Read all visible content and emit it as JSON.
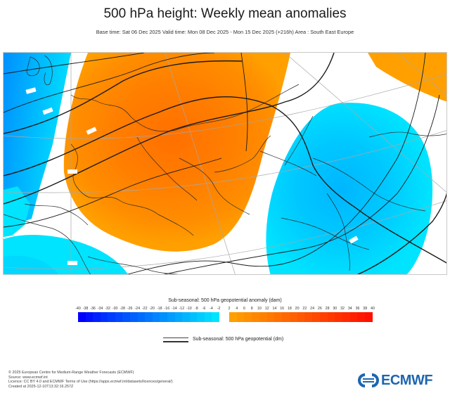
{
  "header": {
    "title": "500 hPa height: Weekly mean anomalies",
    "subtitle": "Base time: Sat 06 Dec 2025 Valid time: Mon 08 Dec 2025 - Mon 15 Dec 2025 (+216h) Area : South East Europe"
  },
  "map": {
    "area": "South East Europe",
    "colors": {
      "positive_light": "#ffa000",
      "positive_mid": "#ff8a00",
      "positive_strong": "#ff7800",
      "negative_light": "#00e5ff",
      "negative_mid": "#00cfff",
      "negative_strong": "#00b4ff",
      "coast": "#2b2b2b",
      "graticule": "#a8a8a8",
      "contour": "#1a1a1a"
    }
  },
  "legend": {
    "title": "Sub-seasonal: 500 hPa geopotential anomaly (dam)",
    "negative_ticks": [
      "-40",
      "-38",
      "-36",
      "-34",
      "-32",
      "-30",
      "-28",
      "-26",
      "-24",
      "-22",
      "-20",
      "-18",
      "-16",
      "-14",
      "-12",
      "-10",
      "-8",
      "-6",
      "-4",
      "-2"
    ],
    "positive_ticks": [
      "2",
      "4",
      "6",
      "8",
      "10",
      "12",
      "14",
      "16",
      "18",
      "20",
      "22",
      "24",
      "26",
      "28",
      "30",
      "32",
      "34",
      "36",
      "38",
      "40"
    ],
    "negative_colors": [
      "#0000ff",
      "#0010ff",
      "#0020ff",
      "#0030ff",
      "#003cff",
      "#0048ff",
      "#0054ff",
      "#0060ff",
      "#006cff",
      "#0078ff",
      "#0084ff",
      "#0090ff",
      "#009cff",
      "#00a8ff",
      "#00b4ff",
      "#00c0ff",
      "#00ccff",
      "#00d8ff",
      "#00e4ff"
    ],
    "positive_colors": [
      "#ffa000",
      "#ff9800",
      "#ff9000",
      "#ff8800",
      "#ff8000",
      "#ff7800",
      "#ff7000",
      "#ff6800",
      "#ff6000",
      "#ff5800",
      "#ff5000",
      "#ff4800",
      "#ff4000",
      "#ff3800",
      "#ff3000",
      "#ff2800",
      "#ff2000",
      "#ff1800",
      "#ff1000"
    ],
    "contour_label": "Sub-seasonal: 500 hPa geopotential (dm)"
  },
  "footer": {
    "lines": [
      "© 2025 European Centre for Medium-Range Weather Forecasts (ECMWF)",
      "Source: www.ecmwf.int",
      "Licence: CC BY 4.0 and ECMWF Terms of Use (https://apps.ecmwf.int/datasets/licences/general/)",
      "Created at 2025-12-10T13:32:16.257Z"
    ]
  },
  "logo": {
    "text": "ECMWF",
    "color": "#1d66b0"
  }
}
